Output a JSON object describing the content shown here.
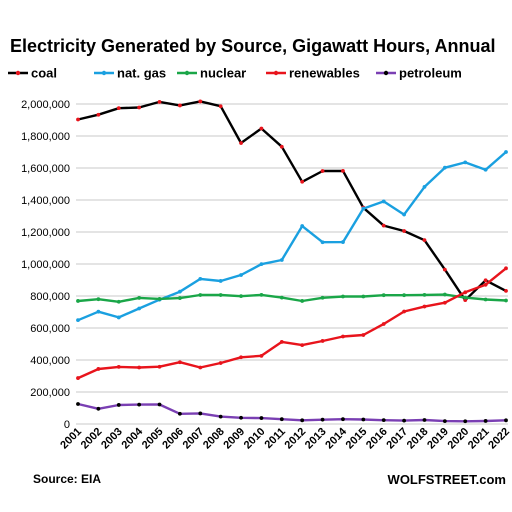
{
  "footer": {
    "source": "Source: EIA",
    "brand": "WOLFSTREET.com"
  },
  "chart_data": {
    "type": "line",
    "title": "Electricity Generated by Source, Gigawatt Hours, Annual",
    "xlabel": "",
    "ylabel": "",
    "ylim": [
      0,
      2000000
    ],
    "yticks": [
      0,
      200000,
      400000,
      600000,
      800000,
      1000000,
      1200000,
      1400000,
      1600000,
      1800000,
      2000000
    ],
    "ytick_labels": [
      "0",
      "200,000",
      "400,000",
      "600,000",
      "800,000",
      "1,000,000",
      "1,200,000",
      "1,400,000",
      "1,600,000",
      "1,800,000",
      "2,000,000"
    ],
    "grid": true,
    "legend": "top",
    "x": [
      "2001",
      "2002",
      "2003",
      "2004",
      "2005",
      "2006",
      "2007",
      "2008",
      "2009",
      "2010",
      "2011",
      "2012",
      "2013",
      "2014",
      "2015",
      "2016",
      "2017",
      "2018",
      "2019",
      "2020",
      "2021",
      "2022"
    ],
    "series": [
      {
        "name": "coal",
        "color": "#000000",
        "marker_color": "#e8141c",
        "values": [
          1903000,
          1933000,
          1974000,
          1978000,
          2013000,
          1991000,
          2016000,
          1986000,
          1756000,
          1847000,
          1733000,
          1514000,
          1581000,
          1582000,
          1352000,
          1240000,
          1206000,
          1149000,
          965000,
          774000,
          898000,
          832000
        ]
      },
      {
        "name": "nat. gas",
        "color": "#1aa0e0",
        "marker_color": "#1aa0e0",
        "values": [
          649000,
          702000,
          666000,
          722000,
          777000,
          827000,
          907000,
          894000,
          931000,
          999000,
          1025000,
          1237000,
          1136000,
          1137000,
          1346000,
          1391000,
          1309000,
          1482000,
          1602000,
          1635000,
          1589000,
          1700000
        ]
      },
      {
        "name": "nuclear",
        "color": "#1aa648",
        "marker_color": "#1aa648",
        "values": [
          769000,
          780000,
          764000,
          788000,
          782000,
          787000,
          806000,
          806000,
          799000,
          807000,
          790000,
          769000,
          789000,
          797000,
          797000,
          805000,
          805000,
          807000,
          809000,
          790000,
          778000,
          772000
        ]
      },
      {
        "name": "renewables",
        "color": "#e8141c",
        "marker_color": "#e8141c",
        "values": [
          287000,
          344000,
          357000,
          353000,
          358000,
          386000,
          353000,
          381000,
          417000,
          426000,
          513000,
          493000,
          519000,
          547000,
          556000,
          625000,
          703000,
          734000,
          758000,
          823000,
          870000,
          973000
        ]
      },
      {
        "name": "petroleum",
        "color": "#7a3fb3",
        "marker_color": "#000000",
        "values": [
          125000,
          95000,
          119000,
          121000,
          122000,
          64000,
          66000,
          46000,
          39000,
          37000,
          30000,
          23000,
          27000,
          30000,
          28000,
          24000,
          21000,
          25000,
          18000,
          17000,
          19000,
          23000
        ]
      }
    ]
  }
}
